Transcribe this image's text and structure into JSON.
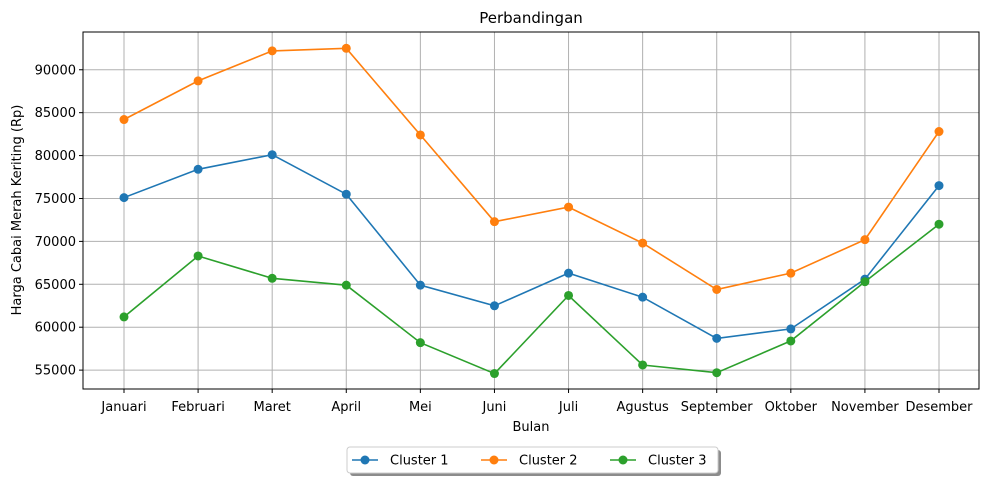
{
  "chart_data": {
    "type": "line",
    "title": "Perbandingan",
    "xlabel": "Bulan",
    "ylabel": "Harga Cabai Merah Keriting (Rp)",
    "categories": [
      "Januari",
      "Februari",
      "Maret",
      "April",
      "Mei",
      "Juni",
      "Juli",
      "Agustus",
      "September",
      "Oktober",
      "November",
      "Desember"
    ],
    "ylim": [
      52800,
      94400
    ],
    "yticks": [
      55000,
      60000,
      65000,
      70000,
      75000,
      80000,
      85000,
      90000
    ],
    "grid": true,
    "legend_position": "bottom-center",
    "series": [
      {
        "name": "Cluster 1",
        "color": "#1f77b4",
        "values": [
          75100,
          78400,
          80100,
          75500,
          64900,
          62500,
          66300,
          63500,
          58700,
          59800,
          65600,
          76500
        ]
      },
      {
        "name": "Cluster 2",
        "color": "#ff7f0e",
        "values": [
          84200,
          88700,
          92200,
          92500,
          82400,
          72300,
          74000,
          69800,
          64400,
          66300,
          70200,
          82800
        ]
      },
      {
        "name": "Cluster 3",
        "color": "#2ca02c",
        "values": [
          61200,
          68300,
          65700,
          64900,
          58200,
          54600,
          63700,
          55600,
          54700,
          58400,
          65300,
          72000
        ]
      }
    ]
  }
}
